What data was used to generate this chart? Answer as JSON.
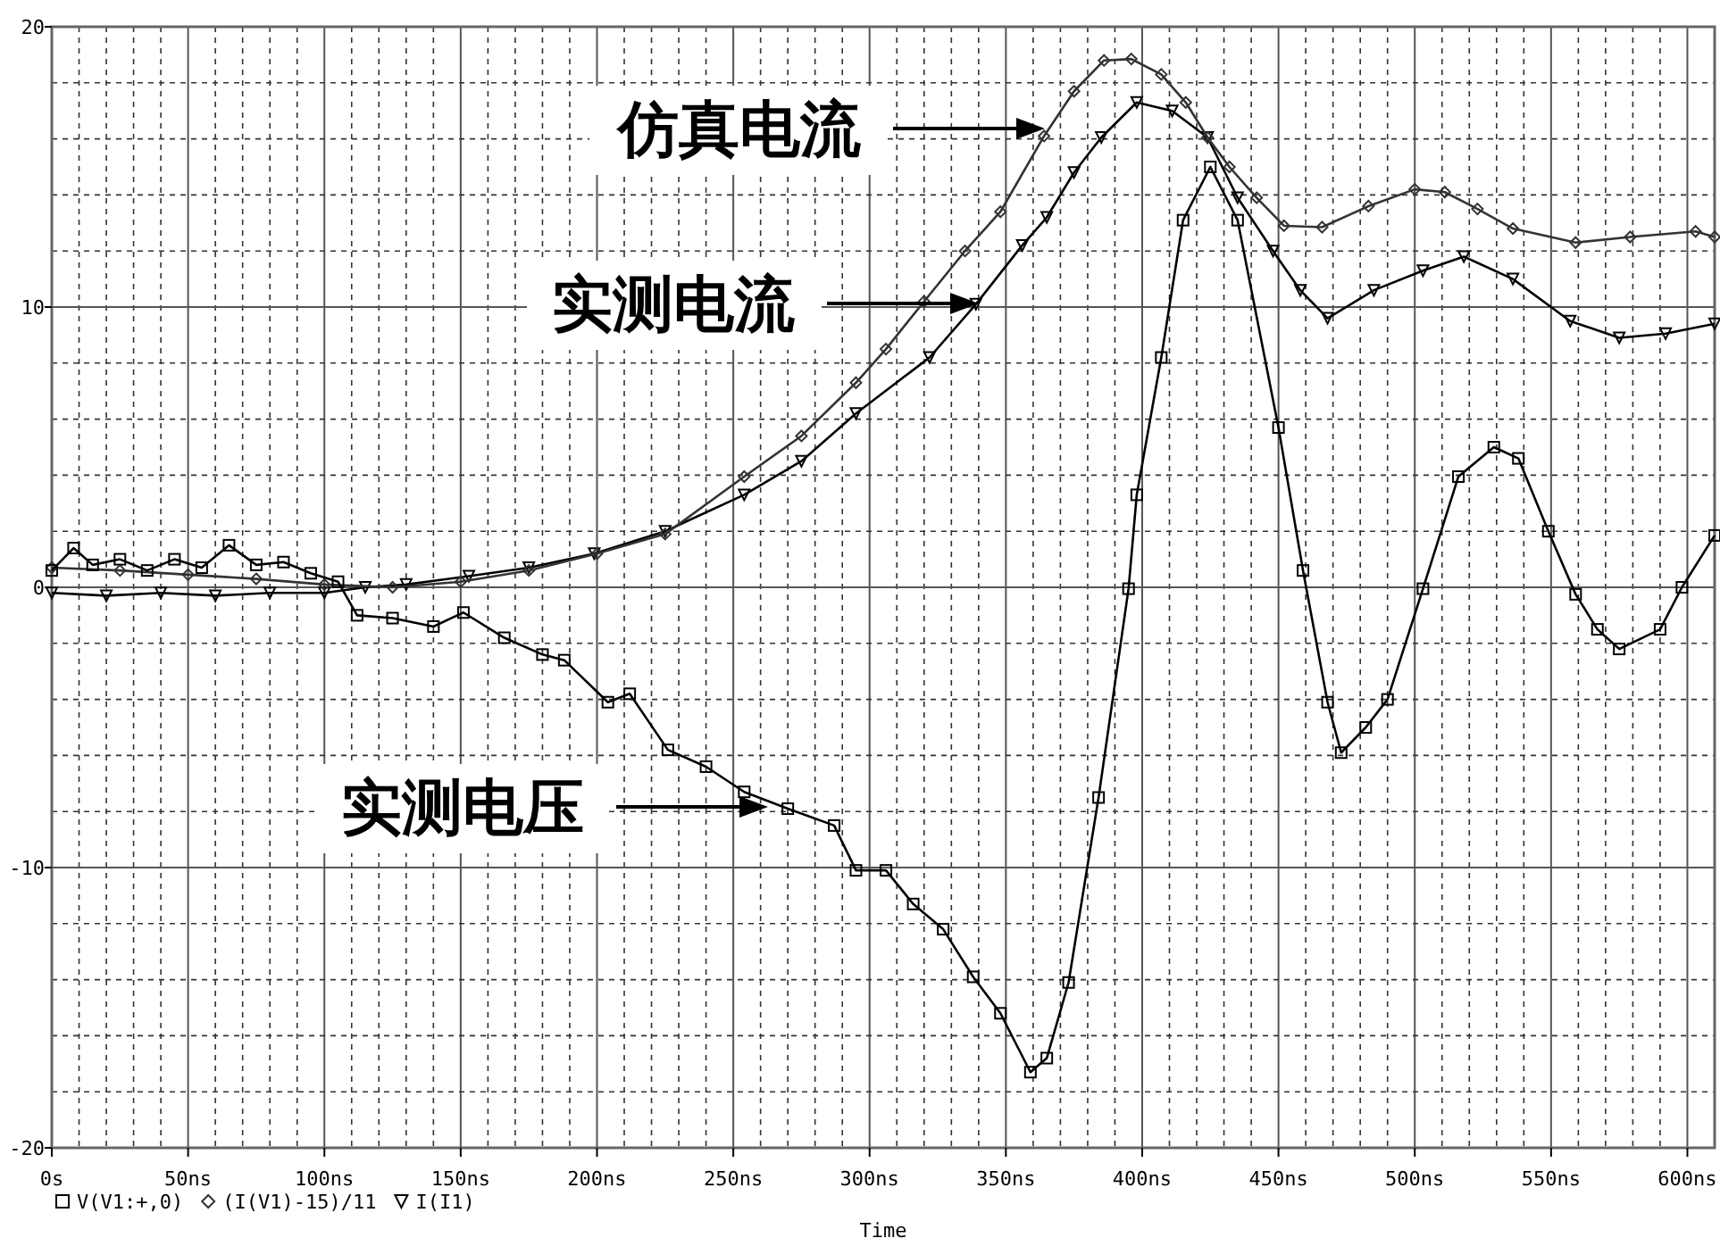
{
  "chart_data": {
    "type": "line",
    "xlabel": "Time",
    "xlim": [
      0,
      610
    ],
    "xticks": [
      {
        "value": 0,
        "label": "0s"
      },
      {
        "value": 50,
        "label": "50ns"
      },
      {
        "value": 100,
        "label": "100ns"
      },
      {
        "value": 150,
        "label": "150ns"
      },
      {
        "value": 200,
        "label": "200ns"
      },
      {
        "value": 250,
        "label": "250ns"
      },
      {
        "value": 300,
        "label": "300ns"
      },
      {
        "value": 350,
        "label": "350ns"
      },
      {
        "value": 400,
        "label": "400ns"
      },
      {
        "value": 450,
        "label": "450ns"
      },
      {
        "value": 500,
        "label": "500ns"
      },
      {
        "value": 550,
        "label": "550ns"
      },
      {
        "value": 600,
        "label": "600ns"
      }
    ],
    "ylim": [
      -20,
      20
    ],
    "yticks": [
      -20,
      -10,
      0,
      10,
      20
    ],
    "grid": true,
    "legend": "bottom left",
    "series": [
      {
        "name": "V(V1:+,0)",
        "color": "#000000",
        "marker": "square",
        "x": [
          0,
          8,
          15,
          25,
          35,
          45,
          55,
          65,
          75,
          85,
          95,
          105,
          112,
          125,
          140,
          151,
          166,
          180,
          188,
          204,
          212,
          226,
          240,
          254,
          270,
          287,
          295,
          306,
          316,
          327,
          338,
          348,
          359,
          365,
          373,
          384,
          395,
          398,
          407,
          415,
          425,
          435,
          450,
          459,
          468,
          473,
          482,
          490,
          503,
          516,
          529,
          538,
          549,
          559,
          567,
          575,
          590,
          598,
          610
        ],
        "values": [
          0.6,
          1.4,
          0.8,
          1.0,
          0.6,
          1.0,
          0.7,
          1.5,
          0.8,
          0.9,
          0.5,
          0.2,
          -1.0,
          -1.1,
          -1.4,
          -0.9,
          -1.8,
          -2.4,
          -2.6,
          -4.1,
          -3.8,
          -5.8,
          -6.4,
          -7.3,
          -7.9,
          -8.5,
          -10.1,
          -10.1,
          -11.3,
          -12.2,
          -13.9,
          -15.2,
          -17.3,
          -16.8,
          -14.1,
          -7.5,
          -0.05,
          3.3,
          8.2,
          13.1,
          15.0,
          13.1,
          5.7,
          0.6,
          -4.1,
          -5.9,
          -5.0,
          -4.0,
          -0.05,
          3.95,
          5.0,
          4.6,
          2.0,
          -0.25,
          -1.5,
          -2.2,
          -1.5,
          0,
          1.85
        ]
      },
      {
        "name": "(I(V1)-15)/11",
        "color": "#333333",
        "marker": "diamond",
        "x": [
          0,
          25,
          50,
          75,
          100,
          125,
          150,
          175,
          200,
          225,
          254,
          275,
          295,
          306,
          320,
          335,
          348,
          364,
          375,
          386,
          396,
          407,
          416,
          424,
          432,
          442,
          452,
          466,
          483,
          500,
          511,
          523,
          536,
          559,
          579,
          603,
          610
        ],
        "values": [
          0.7,
          0.6,
          0.45,
          0.3,
          0.1,
          0.0,
          0.2,
          0.6,
          1.2,
          1.9,
          3.95,
          5.4,
          7.3,
          8.5,
          10.2,
          12.0,
          13.4,
          16.1,
          17.7,
          18.8,
          18.85,
          18.3,
          17.3,
          16.05,
          15.0,
          13.9,
          12.9,
          12.85,
          13.6,
          14.2,
          14.1,
          13.5,
          12.8,
          12.3,
          12.5,
          12.7,
          12.5
        ]
      },
      {
        "name": "I(I1)",
        "color": "#000000",
        "marker": "triangle",
        "x": [
          0,
          20,
          40,
          60,
          80,
          100,
          115,
          130,
          153,
          175,
          199,
          225,
          254,
          275,
          295,
          322,
          339,
          356,
          365,
          375,
          385,
          398,
          411,
          424,
          435,
          448,
          458,
          468,
          485,
          503,
          518,
          536,
          557,
          575,
          592,
          610
        ],
        "values": [
          -0.2,
          -0.3,
          -0.2,
          -0.3,
          -0.2,
          -0.2,
          0.0,
          0.1,
          0.4,
          0.7,
          1.2,
          2.0,
          3.3,
          4.5,
          6.2,
          8.2,
          10.1,
          12.2,
          13.2,
          14.8,
          16.05,
          17.3,
          17.0,
          16.05,
          13.9,
          12.0,
          10.6,
          9.6,
          10.6,
          11.3,
          11.8,
          11.0,
          9.5,
          8.9,
          9.05,
          9.4
        ]
      }
    ],
    "annotations": [
      "仿真电流",
      "实测电流",
      "实测电压"
    ]
  }
}
